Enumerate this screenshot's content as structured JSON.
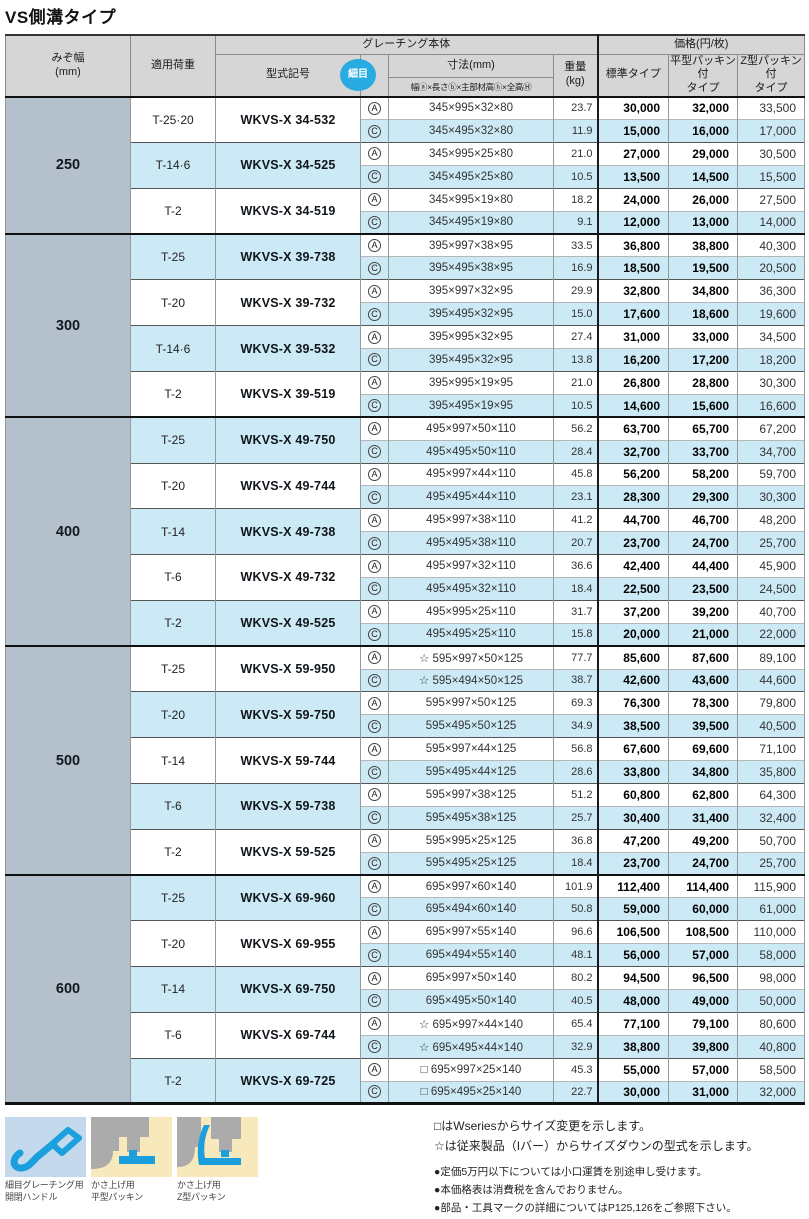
{
  "title": "VS側溝タイプ",
  "table": {
    "headers": {
      "mizo": "みぞ幅\n(mm)",
      "load": "適用荷重",
      "body": "グレーチング本体",
      "price": "価格(円/枚)",
      "model": "型式記号",
      "hosome": "細目",
      "dim": "寸法(mm)",
      "dim_sub": "幅ⓐ×長さⓑ×主部材高ⓗ×全高Ⓗ",
      "weight": "重量\n(kg)",
      "std": "標準タイプ",
      "flat": "平型パッキン付\nタイプ",
      "z": "Z型パッキン付\nタイプ"
    },
    "sections": [
      {
        "width": "250",
        "groups": [
          {
            "load": "T-25·20",
            "model": "WKVS-X 34-532",
            "shaded": false,
            "rows": [
              {
                "mark": "A",
                "prefix": "",
                "dim": "345×995×32×80",
                "weight": "23.7",
                "prices": [
                  "30,000",
                  "32,000",
                  "33,500"
                ]
              },
              {
                "mark": "C",
                "prefix": "",
                "dim": "345×495×32×80",
                "weight": "11.9",
                "prices": [
                  "15,000",
                  "16,000",
                  "17,000"
                ]
              }
            ]
          },
          {
            "load": "T-14·6",
            "model": "WKVS-X 34-525",
            "shaded": true,
            "rows": [
              {
                "mark": "A",
                "prefix": "",
                "dim": "345×995×25×80",
                "weight": "21.0",
                "prices": [
                  "27,000",
                  "29,000",
                  "30,500"
                ]
              },
              {
                "mark": "C",
                "prefix": "",
                "dim": "345×495×25×80",
                "weight": "10.5",
                "prices": [
                  "13,500",
                  "14,500",
                  "15,500"
                ]
              }
            ]
          },
          {
            "load": "T-2",
            "model": "WKVS-X 34-519",
            "shaded": false,
            "rows": [
              {
                "mark": "A",
                "prefix": "",
                "dim": "345×995×19×80",
                "weight": "18.2",
                "prices": [
                  "24,000",
                  "26,000",
                  "27,500"
                ]
              },
              {
                "mark": "C",
                "prefix": "",
                "dim": "345×495×19×80",
                "weight": "9.1",
                "prices": [
                  "12,000",
                  "13,000",
                  "14,000"
                ]
              }
            ]
          }
        ]
      },
      {
        "width": "300",
        "groups": [
          {
            "load": "T-25",
            "model": "WKVS-X 39-738",
            "shaded": true,
            "rows": [
              {
                "mark": "A",
                "prefix": "",
                "dim": "395×997×38×95",
                "weight": "33.5",
                "prices": [
                  "36,800",
                  "38,800",
                  "40,300"
                ]
              },
              {
                "mark": "C",
                "prefix": "",
                "dim": "395×495×38×95",
                "weight": "16.9",
                "prices": [
                  "18,500",
                  "19,500",
                  "20,500"
                ]
              }
            ]
          },
          {
            "load": "T-20",
            "model": "WKVS-X 39-732",
            "shaded": false,
            "rows": [
              {
                "mark": "A",
                "prefix": "",
                "dim": "395×997×32×95",
                "weight": "29.9",
                "prices": [
                  "32,800",
                  "34,800",
                  "36,300"
                ]
              },
              {
                "mark": "C",
                "prefix": "",
                "dim": "395×495×32×95",
                "weight": "15.0",
                "prices": [
                  "17,600",
                  "18,600",
                  "19,600"
                ]
              }
            ]
          },
          {
            "load": "T-14·6",
            "model": "WKVS-X 39-532",
            "shaded": true,
            "rows": [
              {
                "mark": "A",
                "prefix": "",
                "dim": "395×995×32×95",
                "weight": "27.4",
                "prices": [
                  "31,000",
                  "33,000",
                  "34,500"
                ]
              },
              {
                "mark": "C",
                "prefix": "",
                "dim": "395×495×32×95",
                "weight": "13.8",
                "prices": [
                  "16,200",
                  "17,200",
                  "18,200"
                ]
              }
            ]
          },
          {
            "load": "T-2",
            "model": "WKVS-X 39-519",
            "shaded": false,
            "rows": [
              {
                "mark": "A",
                "prefix": "",
                "dim": "395×995×19×95",
                "weight": "21.0",
                "prices": [
                  "26,800",
                  "28,800",
                  "30,300"
                ]
              },
              {
                "mark": "C",
                "prefix": "",
                "dim": "395×495×19×95",
                "weight": "10.5",
                "prices": [
                  "14,600",
                  "15,600",
                  "16,600"
                ]
              }
            ]
          }
        ]
      },
      {
        "width": "400",
        "groups": [
          {
            "load": "T-25",
            "model": "WKVS-X 49-750",
            "shaded": true,
            "rows": [
              {
                "mark": "A",
                "prefix": "",
                "dim": "495×997×50×110",
                "weight": "56.2",
                "prices": [
                  "63,700",
                  "65,700",
                  "67,200"
                ]
              },
              {
                "mark": "C",
                "prefix": "",
                "dim": "495×495×50×110",
                "weight": "28.4",
                "prices": [
                  "32,700",
                  "33,700",
                  "34,700"
                ]
              }
            ]
          },
          {
            "load": "T-20",
            "model": "WKVS-X 49-744",
            "shaded": false,
            "rows": [
              {
                "mark": "A",
                "prefix": "",
                "dim": "495×997×44×110",
                "weight": "45.8",
                "prices": [
                  "56,200",
                  "58,200",
                  "59,700"
                ]
              },
              {
                "mark": "C",
                "prefix": "",
                "dim": "495×495×44×110",
                "weight": "23.1",
                "prices": [
                  "28,300",
                  "29,300",
                  "30,300"
                ]
              }
            ]
          },
          {
            "load": "T-14",
            "model": "WKVS-X 49-738",
            "shaded": true,
            "rows": [
              {
                "mark": "A",
                "prefix": "",
                "dim": "495×997×38×110",
                "weight": "41.2",
                "prices": [
                  "44,700",
                  "46,700",
                  "48,200"
                ]
              },
              {
                "mark": "C",
                "prefix": "",
                "dim": "495×495×38×110",
                "weight": "20.7",
                "prices": [
                  "23,700",
                  "24,700",
                  "25,700"
                ]
              }
            ]
          },
          {
            "load": "T-6",
            "model": "WKVS-X 49-732",
            "shaded": false,
            "rows": [
              {
                "mark": "A",
                "prefix": "",
                "dim": "495×997×32×110",
                "weight": "36.6",
                "prices": [
                  "42,400",
                  "44,400",
                  "45,900"
                ]
              },
              {
                "mark": "C",
                "prefix": "",
                "dim": "495×495×32×110",
                "weight": "18.4",
                "prices": [
                  "22,500",
                  "23,500",
                  "24,500"
                ]
              }
            ]
          },
          {
            "load": "T-2",
            "model": "WKVS-X 49-525",
            "shaded": true,
            "rows": [
              {
                "mark": "A",
                "prefix": "",
                "dim": "495×995×25×110",
                "weight": "31.7",
                "prices": [
                  "37,200",
                  "39,200",
                  "40,700"
                ]
              },
              {
                "mark": "C",
                "prefix": "",
                "dim": "495×495×25×110",
                "weight": "15.8",
                "prices": [
                  "20,000",
                  "21,000",
                  "22,000"
                ]
              }
            ]
          }
        ]
      },
      {
        "width": "500",
        "groups": [
          {
            "load": "T-25",
            "model": "WKVS-X 59-950",
            "shaded": false,
            "rows": [
              {
                "mark": "A",
                "prefix": "☆",
                "dim": "595×997×50×125",
                "weight": "77.7",
                "prices": [
                  "85,600",
                  "87,600",
                  "89,100"
                ]
              },
              {
                "mark": "C",
                "prefix": "☆",
                "dim": "595×494×50×125",
                "weight": "38.7",
                "prices": [
                  "42,600",
                  "43,600",
                  "44,600"
                ]
              }
            ]
          },
          {
            "load": "T-20",
            "model": "WKVS-X 59-750",
            "shaded": true,
            "rows": [
              {
                "mark": "A",
                "prefix": "",
                "dim": "595×997×50×125",
                "weight": "69.3",
                "prices": [
                  "76,300",
                  "78,300",
                  "79,800"
                ]
              },
              {
                "mark": "C",
                "prefix": "",
                "dim": "595×495×50×125",
                "weight": "34.9",
                "prices": [
                  "38,500",
                  "39,500",
                  "40,500"
                ]
              }
            ]
          },
          {
            "load": "T-14",
            "model": "WKVS-X 59-744",
            "shaded": false,
            "rows": [
              {
                "mark": "A",
                "prefix": "",
                "dim": "595×997×44×125",
                "weight": "56.8",
                "prices": [
                  "67,600",
                  "69,600",
                  "71,100"
                ]
              },
              {
                "mark": "C",
                "prefix": "",
                "dim": "595×495×44×125",
                "weight": "28.6",
                "prices": [
                  "33,800",
                  "34,800",
                  "35,800"
                ]
              }
            ]
          },
          {
            "load": "T-6",
            "model": "WKVS-X 59-738",
            "shaded": true,
            "rows": [
              {
                "mark": "A",
                "prefix": "",
                "dim": "595×997×38×125",
                "weight": "51.2",
                "prices": [
                  "60,800",
                  "62,800",
                  "64,300"
                ]
              },
              {
                "mark": "C",
                "prefix": "",
                "dim": "595×495×38×125",
                "weight": "25.7",
                "prices": [
                  "30,400",
                  "31,400",
                  "32,400"
                ]
              }
            ]
          },
          {
            "load": "T-2",
            "model": "WKVS-X 59-525",
            "shaded": false,
            "rows": [
              {
                "mark": "A",
                "prefix": "",
                "dim": "595×995×25×125",
                "weight": "36.8",
                "prices": [
                  "47,200",
                  "49,200",
                  "50,700"
                ]
              },
              {
                "mark": "C",
                "prefix": "",
                "dim": "595×495×25×125",
                "weight": "18.4",
                "prices": [
                  "23,700",
                  "24,700",
                  "25,700"
                ]
              }
            ]
          }
        ]
      },
      {
        "width": "600",
        "groups": [
          {
            "load": "T-25",
            "model": "WKVS-X 69-960",
            "shaded": true,
            "rows": [
              {
                "mark": "A",
                "prefix": "",
                "dim": "695×997×60×140",
                "weight": "101.9",
                "prices": [
                  "112,400",
                  "114,400",
                  "115,900"
                ]
              },
              {
                "mark": "C",
                "prefix": "",
                "dim": "695×494×60×140",
                "weight": "50.8",
                "prices": [
                  "59,000",
                  "60,000",
                  "61,000"
                ]
              }
            ]
          },
          {
            "load": "T-20",
            "model": "WKVS-X 69-955",
            "shaded": false,
            "rows": [
              {
                "mark": "A",
                "prefix": "",
                "dim": "695×997×55×140",
                "weight": "96.6",
                "prices": [
                  "106,500",
                  "108,500",
                  "110,000"
                ]
              },
              {
                "mark": "C",
                "prefix": "",
                "dim": "695×494×55×140",
                "weight": "48.1",
                "prices": [
                  "56,000",
                  "57,000",
                  "58,000"
                ]
              }
            ]
          },
          {
            "load": "T-14",
            "model": "WKVS-X 69-750",
            "shaded": true,
            "rows": [
              {
                "mark": "A",
                "prefix": "",
                "dim": "695×997×50×140",
                "weight": "80.2",
                "prices": [
                  "94,500",
                  "96,500",
                  "98,000"
                ]
              },
              {
                "mark": "C",
                "prefix": "",
                "dim": "695×495×50×140",
                "weight": "40.5",
                "prices": [
                  "48,000",
                  "49,000",
                  "50,000"
                ]
              }
            ]
          },
          {
            "load": "T-6",
            "model": "WKVS-X 69-744",
            "shaded": false,
            "rows": [
              {
                "mark": "A",
                "prefix": "☆",
                "dim": "695×997×44×140",
                "weight": "65.4",
                "prices": [
                  "77,100",
                  "79,100",
                  "80,600"
                ]
              },
              {
                "mark": "C",
                "prefix": "☆",
                "dim": "695×495×44×140",
                "weight": "32.9",
                "prices": [
                  "38,800",
                  "39,800",
                  "40,800"
                ]
              }
            ]
          },
          {
            "load": "T-2",
            "model": "WKVS-X 69-725",
            "shaded": true,
            "rows": [
              {
                "mark": "A",
                "prefix": "□",
                "dim": "695×997×25×140",
                "weight": "45.3",
                "prices": [
                  "55,000",
                  "57,000",
                  "58,500"
                ]
              },
              {
                "mark": "C",
                "prefix": "□",
                "dim": "695×495×25×140",
                "weight": "22.7",
                "prices": [
                  "30,000",
                  "31,000",
                  "32,000"
                ]
              }
            ]
          }
        ]
      }
    ]
  },
  "legend": [
    {
      "icon": "open-close-handle-icon",
      "label": "細目グレーチング用\n開閉ハンドル"
    },
    {
      "icon": "flat-packing-icon",
      "label": "かさ上げ用\n平型パッキン"
    },
    {
      "icon": "z-packing-icon",
      "label": "かさ上げ用\nZ型パッキン"
    }
  ],
  "notes": {
    "square_note": "□はWseriesからサイズ変更を示します。",
    "star_note": "☆は従来製品（Iバー）からサイズダウンの型式を示します。",
    "bullets": [
      "●定価5万円以下については小口運賃を別途申し受けます。",
      "●本価格表は消費税を含んでおりません。",
      "●部品・工具マークの詳細についてはP125,126をご参照下さい。"
    ]
  },
  "colors": {
    "accent_blue": "#29abe2",
    "row_highlight": "#cce9f6",
    "width_cell": "#b4c1cd",
    "header_bg": "#d6d6d6",
    "icon_blue": "#1b9fdd",
    "icon_cream": "#f7e9bb",
    "icon_gray": "#ababab",
    "icon_bg_blue": "#c5d9ec"
  }
}
